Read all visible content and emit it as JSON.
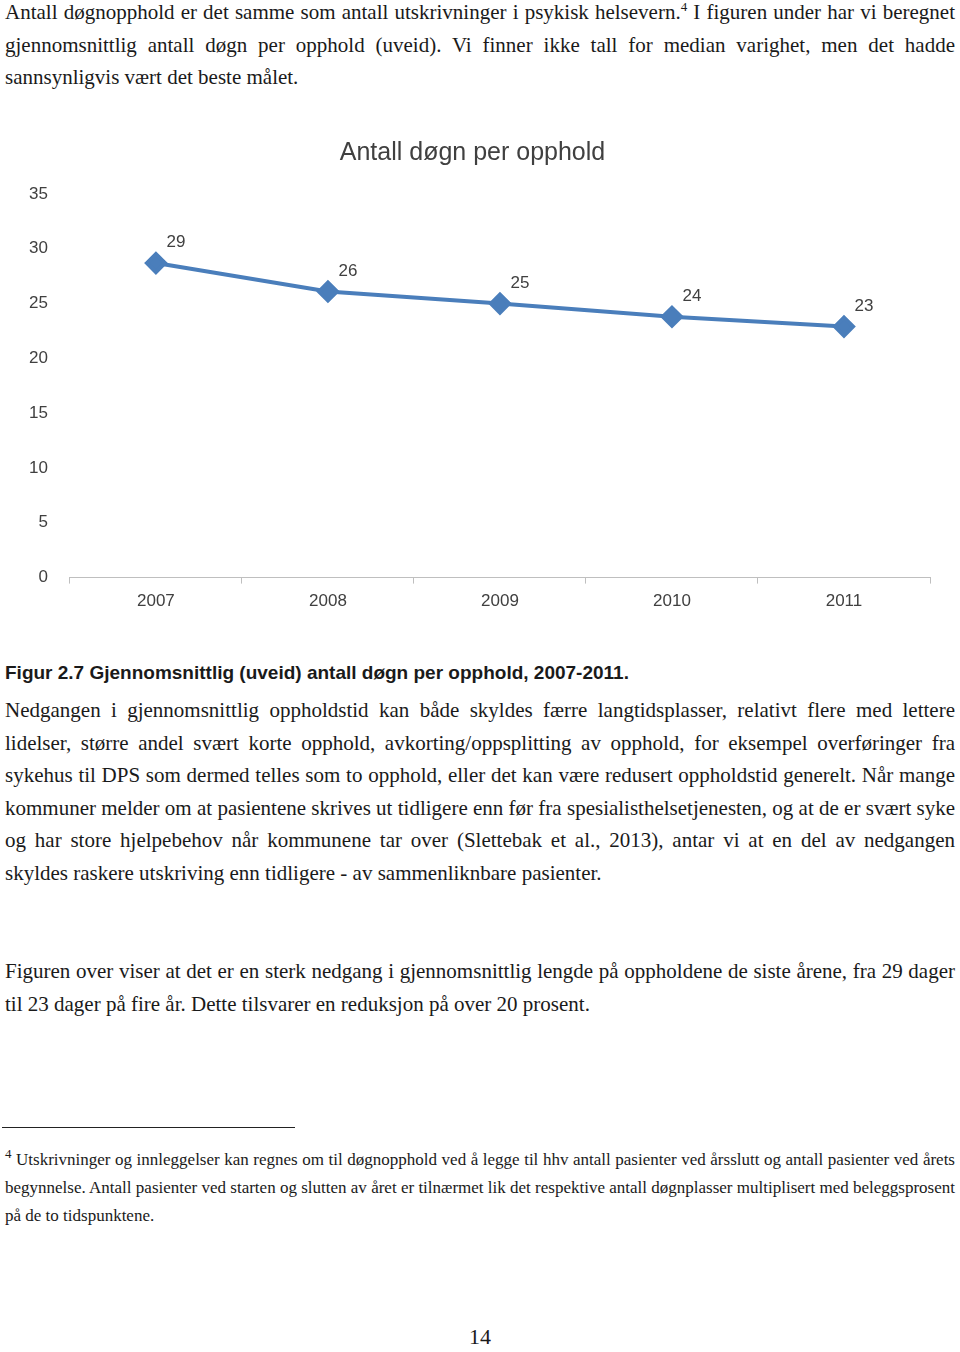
{
  "intro": {
    "before": "Antall døgnopphold er det samme som antall utskrivninger i psykisk helsevern.",
    "footnote_ref": "4",
    "after": " I figuren under har vi beregnet gjennomsnittlig antall døgn per opphold (uveid). Vi finner ikke tall for median varighet, men det hadde sannsynligvis vært det beste målet."
  },
  "chart_data": {
    "type": "line",
    "title": "Antall døgn per opphold",
    "categories": [
      "2007",
      "2008",
      "2009",
      "2010",
      "2011"
    ],
    "values": [
      28.7,
      26.1,
      25.0,
      23.8,
      22.9
    ],
    "value_labels": [
      "29",
      "26",
      "25",
      "24",
      "23"
    ],
    "color": "#4a7ebb",
    "marker": "diamond",
    "data_labels": true,
    "ylim": [
      0,
      35
    ],
    "yticks": [
      0,
      5,
      10,
      15,
      20,
      25,
      30,
      35
    ],
    "grid": false,
    "legend": "none"
  },
  "caption": "Figur 2.7 Gjennomsnittlig (uveid) antall døgn per opphold, 2007-2011.",
  "paragraphs": [
    "Nedgangen i gjennomsnittlig oppholdstid kan både skyldes færre langtidsplasser, relativt flere med lettere lidelser, større andel svært korte opphold, avkorting/oppsplitting av opphold, for eksempel overføringer fra sykehus til DPS som dermed telles som to opphold, eller det kan være redusert oppholdstid generelt. Når mange kommuner melder om at pasientene skrives ut tidligere enn før fra spesialisthelsetjenesten, og at de er svært syke og har store hjelpebehov når kommunene tar over (Slettebak et al., 2013), antar vi at en del av nedgangen skyldes raskere utskriving enn tidligere - av sammenliknbare pasienter.",
    "Figuren over viser at det er en sterk nedgang i gjennomsnittlig lengde på oppholdene de siste årene, fra 29 dager til 23 dager på fire år. Dette tilsvarer en reduksjon på over 20 prosent."
  ],
  "footnote": {
    "marker": "4",
    "text": " Utskrivninger og innleggelser kan regnes om til døgnopphold ved å legge til hhv antall pasienter ved årsslutt og antall pasienter ved årets begynnelse. Antall pasienter ved starten og slutten av året er tilnærmet lik det respektive antall døgnplasser multiplisert med beleggsprosent på de to tidspunktene."
  },
  "page_number": "14"
}
